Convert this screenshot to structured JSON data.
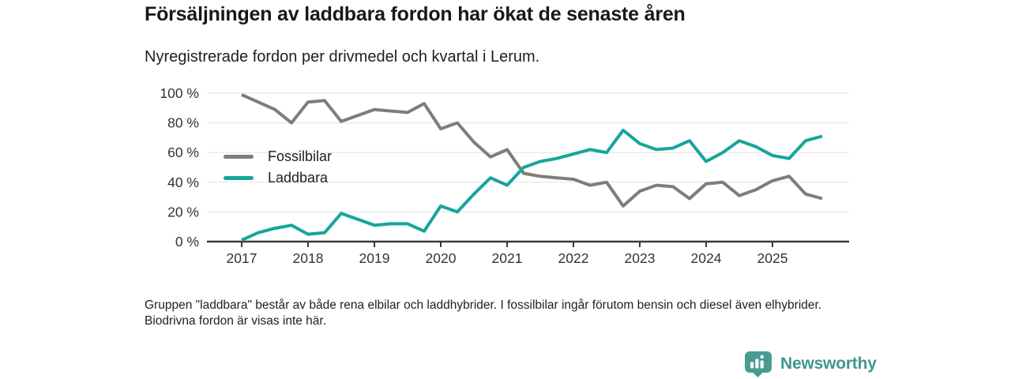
{
  "page": {
    "background": "#ffffff"
  },
  "chart_data": {
    "type": "line",
    "title": "Försäljningen av laddbara fordon har ökat de senaste åren",
    "subtitle": "Nyregistrerade fordon per drivmedel och kvartal i Lerum.",
    "note": "Gruppen \"laddbara\" består av både rena elbilar och laddhybrider. I fossilbilar ingår förutom bensin och diesel även elhybrider. Biodrivna fordon är visas inte här.",
    "x_unit": "quarter",
    "x_range": "2017 Q1 – 2025 Q4",
    "x_tick_labels": [
      "2017",
      "2018",
      "2019",
      "2020",
      "2021",
      "2022",
      "2023",
      "2024",
      "2025"
    ],
    "y_ticks": [
      0,
      20,
      40,
      60,
      80,
      100
    ],
    "y_tick_labels": [
      "0 %",
      "20 %",
      "40 %",
      "60 %",
      "80 %",
      "100 %"
    ],
    "ylim": [
      0,
      100
    ],
    "grid": "horizontal",
    "legend_position": "inside-left",
    "axis_color": "#3a3a3a",
    "grid_color": "#e3e3e3",
    "tick_label_color": "#333333",
    "series": [
      {
        "name": "Fossilbilar",
        "color": "#7d7d7d",
        "values": [
          99,
          94,
          89,
          80,
          94,
          95,
          81,
          85,
          89,
          88,
          87,
          93,
          76,
          80,
          67,
          57,
          62,
          46,
          44,
          43,
          42,
          38,
          40,
          24,
          34,
          38,
          37,
          29,
          39,
          40,
          31,
          35,
          41,
          44,
          32,
          29
        ]
      },
      {
        "name": "Laddbara",
        "color": "#16a59b",
        "values": [
          1,
          6,
          9,
          11,
          5,
          6,
          19,
          15,
          11,
          12,
          12,
          7,
          24,
          20,
          32,
          43,
          38,
          50,
          54,
          56,
          59,
          62,
          60,
          75,
          66,
          62,
          63,
          68,
          54,
          60,
          68,
          64,
          58,
          56,
          68,
          71
        ]
      }
    ]
  },
  "logo": {
    "text": "Newsworthy",
    "text_color": "#3f968f",
    "icon_color": "#4a9b93",
    "icon": "newsworthy-pin-barchart"
  }
}
